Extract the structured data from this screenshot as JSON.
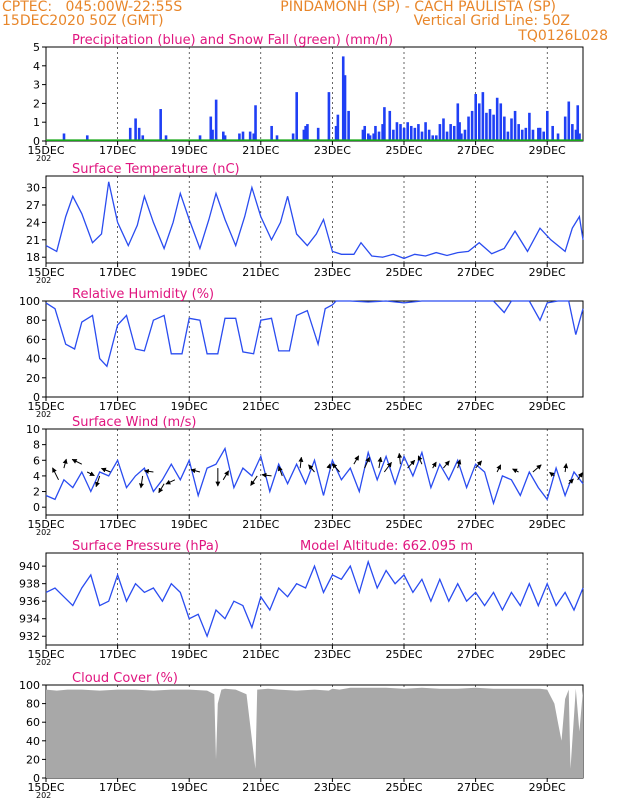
{
  "header": {
    "line1_left": "CPTEC:   045:00W-22:55S",
    "line1_right": "PINDAMONH (SP) - CACH PAULISTA (SP)",
    "line2_left": "15DEC2020 50Z (GMT)",
    "line2_right": "Vertical Grid Line: 50Z",
    "code": "TQ0126L028"
  },
  "colors": {
    "header": "#e8862a",
    "title": "#e0157f",
    "precip": "#1f3ff5",
    "snow": "#18a818",
    "line": "#2a4cf0",
    "cloud": "#a8a8a8",
    "wind_arrow": "#000000"
  },
  "x_axis": {
    "ticks": [
      "15DEC",
      "17DEC",
      "19DEC",
      "21DEC",
      "23DEC",
      "25DEC",
      "27DEC",
      "29DEC"
    ],
    "tick_days": [
      0,
      2,
      4,
      6,
      8,
      10,
      12,
      14
    ],
    "range_days": [
      0,
      15
    ],
    "year_fragment": "202"
  },
  "chart_data": [
    {
      "type": "bar",
      "title": "Precipitation (blue) and Snow Fall (green) (mm/h)",
      "ylim": [
        0,
        5
      ],
      "yticks": [
        0,
        1,
        2,
        3,
        4,
        5
      ],
      "x": [
        0.5,
        1.15,
        2.35,
        2.5,
        2.6,
        2.7,
        3.2,
        3.35,
        4.3,
        4.6,
        4.65,
        4.75,
        4.95,
        5.0,
        5.4,
        5.5,
        5.7,
        5.8,
        5.85,
        6.3,
        6.45,
        6.9,
        7.0,
        7.2,
        7.25,
        7.3,
        7.6,
        7.9,
        8.1,
        8.15,
        8.3,
        8.35,
        8.45,
        8.85,
        8.9,
        9.0,
        9.05,
        9.15,
        9.2,
        9.3,
        9.4,
        9.45,
        9.6,
        9.7,
        9.8,
        9.9,
        10.0,
        10.1,
        10.2,
        10.3,
        10.4,
        10.5,
        10.6,
        10.7,
        10.8,
        10.9,
        11.0,
        11.1,
        11.2,
        11.3,
        11.4,
        11.5,
        11.55,
        11.6,
        11.7,
        11.8,
        11.9,
        12.0,
        12.1,
        12.2,
        12.3,
        12.4,
        12.5,
        12.6,
        12.7,
        12.8,
        12.9,
        13.0,
        13.1,
        13.2,
        13.3,
        13.4,
        13.5,
        13.6,
        13.75,
        13.8,
        13.9,
        14.0,
        14.15,
        14.3,
        14.5,
        14.6,
        14.7,
        14.8,
        14.85,
        14.9
      ],
      "values": [
        0.4,
        0.3,
        0.7,
        1.2,
        0.7,
        0.3,
        1.7,
        0.3,
        0.3,
        1.3,
        0.6,
        2.2,
        0.5,
        0.3,
        0.4,
        0.5,
        0.5,
        0.4,
        1.9,
        0.8,
        0.3,
        0.4,
        2.6,
        0.6,
        0.8,
        0.9,
        0.7,
        2.6,
        0.8,
        1.4,
        4.5,
        3.5,
        1.6,
        0.6,
        0.8,
        0.4,
        0.3,
        0.4,
        0.8,
        0.5,
        0.9,
        1.8,
        1.6,
        0.6,
        1.0,
        0.9,
        0.7,
        1.0,
        0.8,
        0.7,
        0.9,
        0.5,
        1.0,
        0.6,
        0.3,
        0.3,
        0.9,
        1.2,
        0.5,
        0.9,
        0.8,
        2.0,
        1.0,
        0.4,
        0.6,
        1.3,
        1.6,
        2.5,
        2.0,
        2.6,
        1.5,
        1.7,
        1.4,
        2.3,
        2.0,
        1.3,
        0.5,
        1.2,
        1.6,
        0.9,
        0.6,
        0.7,
        1.5,
        0.6,
        0.7,
        0.7,
        0.5,
        1.6,
        0.8,
        0.4,
        1.3,
        2.1,
        0.9,
        0.6,
        1.9,
        0.4
      ],
      "snow_values": 0
    },
    {
      "type": "line",
      "title": "Surface Temperature (nC)",
      "ylim": [
        17,
        32
      ],
      "yticks": [
        18,
        21,
        24,
        27,
        30
      ],
      "x": [
        0.0,
        0.3,
        0.55,
        0.75,
        1.0,
        1.3,
        1.55,
        1.75,
        2.0,
        2.3,
        2.55,
        2.75,
        3.0,
        3.3,
        3.55,
        3.75,
        4.0,
        4.3,
        4.55,
        4.75,
        5.0,
        5.3,
        5.55,
        5.75,
        6.0,
        6.3,
        6.55,
        6.75,
        7.0,
        7.3,
        7.55,
        7.75,
        8.0,
        8.25,
        8.6,
        8.8,
        9.1,
        9.4,
        9.7,
        10.0,
        10.3,
        10.6,
        10.9,
        11.2,
        11.5,
        11.8,
        12.1,
        12.45,
        12.8,
        13.1,
        13.45,
        13.8,
        14.1,
        14.5,
        14.7,
        14.9,
        15.0
      ],
      "values": [
        20.0,
        19.0,
        25.0,
        28.5,
        25.5,
        20.5,
        22.0,
        31.0,
        24.0,
        20.0,
        23.5,
        28.5,
        24.0,
        19.5,
        24.0,
        29.0,
        24.5,
        19.5,
        24.5,
        29.0,
        24.5,
        20.0,
        25.0,
        30.0,
        25.0,
        21.0,
        24.0,
        28.5,
        22.0,
        20.0,
        22.0,
        24.5,
        19.0,
        18.5,
        18.5,
        20.5,
        18.2,
        18.0,
        18.5,
        17.8,
        18.5,
        18.2,
        18.8,
        18.3,
        18.8,
        19.0,
        20.5,
        18.6,
        19.5,
        22.5,
        19.0,
        23.0,
        21.0,
        19.0,
        23.0,
        25.0,
        21.0
      ]
    },
    {
      "type": "line",
      "title": "Relative Humidity (%)",
      "ylim": [
        0,
        100
      ],
      "yticks": [
        0,
        20,
        40,
        60,
        80,
        100
      ],
      "x": [
        0.0,
        0.25,
        0.55,
        0.8,
        1.0,
        1.3,
        1.5,
        1.7,
        2.0,
        2.25,
        2.5,
        2.75,
        3.0,
        3.3,
        3.5,
        3.8,
        4.0,
        4.3,
        4.5,
        4.8,
        5.0,
        5.3,
        5.5,
        5.8,
        6.0,
        6.3,
        6.5,
        6.8,
        7.0,
        7.3,
        7.6,
        7.8,
        8.0,
        8.1,
        8.5,
        9.0,
        9.5,
        10.0,
        10.5,
        11.0,
        11.5,
        12.0,
        12.5,
        12.8,
        13.0,
        13.5,
        13.8,
        14.0,
        14.3,
        14.6,
        14.8,
        15.0
      ],
      "values": [
        98.0,
        92.0,
        55.0,
        50.0,
        78.0,
        85.0,
        40.0,
        32.0,
        75.0,
        85.0,
        50.0,
        48.0,
        80.0,
        85.0,
        45.0,
        45.0,
        82.0,
        80.0,
        45.0,
        45.0,
        82.0,
        82.0,
        47.0,
        45.0,
        80.0,
        82.0,
        48.0,
        48.0,
        85.0,
        90.0,
        55.0,
        92.0,
        96.0,
        100.0,
        100.0,
        99.0,
        100.0,
        98.0,
        100.0,
        100.0,
        100.0,
        100.0,
        100.0,
        88.0,
        100.0,
        100.0,
        80.0,
        98.0,
        100.0,
        100.0,
        65.0,
        92.0
      ]
    },
    {
      "type": "line",
      "title": "Surface Wind (m/s)",
      "ylim": [
        -1,
        10
      ],
      "yticks": [
        0,
        2,
        4,
        6,
        8,
        10
      ],
      "x": [
        0.0,
        0.25,
        0.5,
        0.75,
        1.0,
        1.25,
        1.5,
        1.75,
        2.0,
        2.25,
        2.5,
        2.75,
        3.0,
        3.25,
        3.5,
        3.75,
        4.0,
        4.25,
        4.5,
        4.75,
        5.0,
        5.25,
        5.5,
        5.75,
        6.0,
        6.25,
        6.5,
        6.75,
        7.0,
        7.25,
        7.5,
        7.75,
        8.0,
        8.25,
        8.5,
        8.75,
        9.0,
        9.25,
        9.5,
        9.75,
        10.0,
        10.25,
        10.5,
        10.75,
        11.0,
        11.25,
        11.5,
        11.75,
        12.0,
        12.25,
        12.5,
        12.75,
        13.0,
        13.25,
        13.5,
        13.75,
        14.0,
        14.25,
        14.5,
        14.75,
        15.0
      ],
      "values": [
        1.5,
        1.0,
        3.5,
        2.5,
        4.5,
        2.0,
        4.5,
        4.0,
        6.0,
        2.5,
        4.0,
        5.0,
        2.0,
        3.5,
        5.5,
        3.5,
        6.0,
        1.5,
        5.0,
        5.5,
        7.5,
        2.5,
        5.0,
        4.0,
        6.5,
        2.0,
        5.5,
        3.0,
        5.5,
        3.0,
        6.0,
        1.5,
        6.0,
        3.5,
        5.0,
        2.0,
        7.0,
        3.5,
        6.5,
        3.0,
        6.5,
        4.0,
        7.0,
        2.5,
        5.5,
        3.5,
        6.0,
        2.5,
        5.5,
        4.5,
        0.5,
        4.0,
        3.5,
        1.5,
        4.5,
        2.5,
        1.0,
        5.0,
        1.5,
        4.5,
        3.0
      ]
    },
    {
      "type": "line",
      "title": "Surface Pressure (hPa)",
      "annotation": "Model Altitude: 662.095 m",
      "ylim": [
        931,
        941.5
      ],
      "yticks": [
        932,
        934,
        936,
        938,
        940
      ],
      "x": [
        0.0,
        0.25,
        0.5,
        0.75,
        1.0,
        1.25,
        1.5,
        1.75,
        2.0,
        2.25,
        2.5,
        2.75,
        3.0,
        3.25,
        3.5,
        3.75,
        4.0,
        4.25,
        4.5,
        4.75,
        5.0,
        5.25,
        5.5,
        5.75,
        6.0,
        6.25,
        6.5,
        6.75,
        7.0,
        7.25,
        7.5,
        7.75,
        8.0,
        8.25,
        8.5,
        8.75,
        9.0,
        9.25,
        9.5,
        9.75,
        10.0,
        10.25,
        10.5,
        10.75,
        11.0,
        11.25,
        11.5,
        11.75,
        12.0,
        12.25,
        12.5,
        12.75,
        13.0,
        13.25,
        13.5,
        13.75,
        14.0,
        14.25,
        14.5,
        14.75,
        15.0
      ],
      "values": [
        937.0,
        937.5,
        936.5,
        935.5,
        937.5,
        939.0,
        935.5,
        936.0,
        939.0,
        936.0,
        938.0,
        937.0,
        937.5,
        936.0,
        938.0,
        937.0,
        934.0,
        934.5,
        932.0,
        935.0,
        934.0,
        936.0,
        935.5,
        933.0,
        936.5,
        935.0,
        937.5,
        936.5,
        938.0,
        937.5,
        940.0,
        937.0,
        939.0,
        938.5,
        940.0,
        937.0,
        940.5,
        937.5,
        939.5,
        938.0,
        939.0,
        937.0,
        938.5,
        936.0,
        938.5,
        936.0,
        938.0,
        936.0,
        937.0,
        935.5,
        937.0,
        935.0,
        937.0,
        935.5,
        938.0,
        935.5,
        938.0,
        935.5,
        937.0,
        935.0,
        937.5
      ]
    },
    {
      "type": "area",
      "title": "Cloud Cover (%)",
      "ylim": [
        0,
        100
      ],
      "yticks": [
        0,
        20,
        40,
        60,
        80,
        100
      ],
      "x": [
        0.0,
        0.3,
        0.6,
        1.0,
        1.5,
        2.0,
        2.5,
        3.0,
        3.5,
        4.0,
        4.5,
        4.7,
        4.75,
        4.8,
        4.9,
        5.0,
        5.3,
        5.6,
        5.85,
        5.9,
        6.2,
        6.5,
        7.0,
        7.5,
        7.9,
        8.0,
        8.2,
        8.5,
        9.0,
        9.5,
        10.0,
        10.5,
        11.0,
        11.5,
        12.0,
        12.5,
        13.0,
        13.5,
        13.8,
        14.0,
        14.2,
        14.3,
        14.4,
        14.5,
        14.6,
        14.65,
        14.8,
        14.9,
        15.0
      ],
      "values": [
        95.0,
        94.0,
        95.0,
        95.0,
        94.0,
        95.0,
        95.0,
        94.0,
        95.0,
        95.0,
        94.0,
        90.0,
        20.0,
        80.0,
        95.0,
        96.0,
        95.0,
        90.0,
        10.0,
        95.0,
        96.0,
        95.0,
        94.0,
        95.0,
        94.0,
        96.0,
        95.0,
        97.0,
        97.0,
        97.0,
        96.0,
        97.0,
        96.0,
        96.0,
        97.0,
        96.0,
        96.0,
        96.0,
        96.0,
        95.0,
        80.0,
        60.0,
        40.0,
        85.0,
        95.0,
        10.0,
        96.0,
        50.0,
        95.0
      ]
    }
  ],
  "wind_vectors": {
    "note_hidden": "",
    "points": [
      {
        "x": 0.35,
        "y": 3.5,
        "dx": -1.0,
        "dy": 2.0
      },
      {
        "x": 0.5,
        "y": 5.0,
        "dx": 0.4,
        "dy": 1.5
      },
      {
        "x": 1.0,
        "y": 5.5,
        "dx": -1.6,
        "dy": 0.8
      },
      {
        "x": 1.15,
        "y": 4.5,
        "dx": 1.2,
        "dy": -0.6
      },
      {
        "x": 1.5,
        "y": 4.0,
        "dx": -0.6,
        "dy": -1.8
      },
      {
        "x": 1.8,
        "y": 4.5,
        "dx": -1.5,
        "dy": 0.6
      },
      {
        "x": 2.7,
        "y": 4.0,
        "dx": -0.3,
        "dy": -2.0
      },
      {
        "x": 3.0,
        "y": 4.5,
        "dx": -1.5,
        "dy": 0.2
      },
      {
        "x": 3.3,
        "y": 3.0,
        "dx": -0.9,
        "dy": -1.5
      },
      {
        "x": 3.6,
        "y": 3.5,
        "dx": -1.5,
        "dy": -0.7
      },
      {
        "x": 4.3,
        "y": 4.5,
        "dx": -1.5,
        "dy": 0.4
      },
      {
        "x": 4.8,
        "y": 5.0,
        "dx": 0.0,
        "dy": -3.0
      },
      {
        "x": 4.95,
        "y": 3.5,
        "dx": 0.9,
        "dy": 1.5
      },
      {
        "x": 5.9,
        "y": 4.0,
        "dx": -1.1,
        "dy": -1.6
      },
      {
        "x": 6.3,
        "y": 4.0,
        "dx": -1.6,
        "dy": 0.2
      },
      {
        "x": 6.6,
        "y": 4.0,
        "dx": -0.6,
        "dy": 1.6
      },
      {
        "x": 7.1,
        "y": 5.0,
        "dx": 0.2,
        "dy": 1.8
      },
      {
        "x": 7.5,
        "y": 4.5,
        "dx": -1.0,
        "dy": 1.2
      },
      {
        "x": 7.9,
        "y": 5.0,
        "dx": 0.2,
        "dy": 0.7
      },
      {
        "x": 8.2,
        "y": 4.5,
        "dx": -1.2,
        "dy": 1.4
      },
      {
        "x": 8.6,
        "y": 5.5,
        "dx": 0.8,
        "dy": 1.4
      },
      {
        "x": 8.9,
        "y": 5.0,
        "dx": 0.8,
        "dy": 1.8
      },
      {
        "x": 9.3,
        "y": 5.0,
        "dx": 0.3,
        "dy": 1.8
      },
      {
        "x": 9.45,
        "y": 4.5,
        "dx": 1.2,
        "dy": 1.6
      },
      {
        "x": 9.9,
        "y": 5.5,
        "dx": -0.2,
        "dy": 1.8
      },
      {
        "x": 10.1,
        "y": 5.0,
        "dx": 1.2,
        "dy": 1.3
      },
      {
        "x": 10.5,
        "y": 5.5,
        "dx": -0.6,
        "dy": 1.4
      },
      {
        "x": 10.8,
        "y": 5.0,
        "dx": 0.6,
        "dy": 1.0
      },
      {
        "x": 11.1,
        "y": 5.0,
        "dx": 1.0,
        "dy": 1.2
      },
      {
        "x": 11.5,
        "y": 5.0,
        "dx": 0.4,
        "dy": 1.4
      },
      {
        "x": 12.0,
        "y": 5.0,
        "dx": 1.0,
        "dy": 1.2
      },
      {
        "x": 12.6,
        "y": 4.5,
        "dx": 0.6,
        "dy": 1.2
      },
      {
        "x": 13.2,
        "y": 4.5,
        "dx": -1.0,
        "dy": 0.5
      },
      {
        "x": 13.6,
        "y": 4.5,
        "dx": 1.4,
        "dy": 1.2
      },
      {
        "x": 14.2,
        "y": 4.0,
        "dx": -0.8,
        "dy": 0.6
      },
      {
        "x": 14.5,
        "y": 4.5,
        "dx": 0.2,
        "dy": 1.4
      },
      {
        "x": 14.6,
        "y": 3.0,
        "dx": 0.8,
        "dy": 0.8
      },
      {
        "x": 14.85,
        "y": 3.5,
        "dx": 0.8,
        "dy": 1.2
      }
    ]
  }
}
